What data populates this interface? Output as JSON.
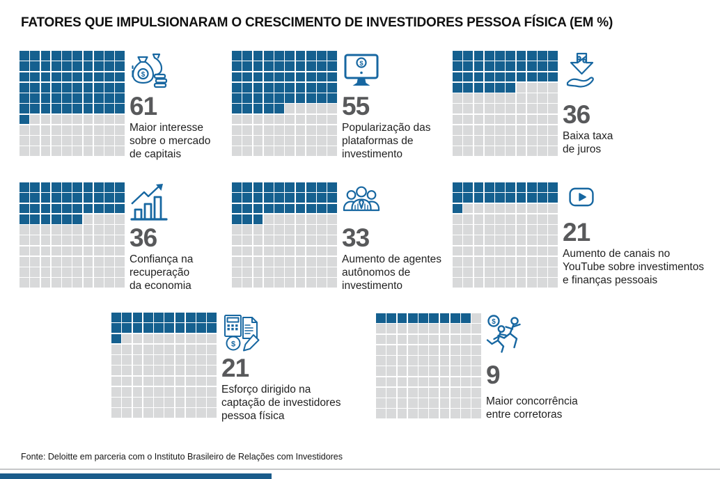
{
  "title": "FATORES QUE IMPULSIONARAM O CRESCIMENTO DE INVESTIDORES PESSOA FÍSICA (EM %)",
  "source_note": "Fonte: Deloitte em parceria com o Instituto Brasileiro de Relações com Investidores",
  "colors": {
    "waffle_filled": "#15608F",
    "waffle_empty": "#D8D9DA",
    "icon_blue": "#1767A1",
    "number_gray": "#58595B",
    "label_dark": "#1F1F1F",
    "rule_gray": "#C6C7C9",
    "bottom_bar_blue": "#1A5C8B"
  },
  "chart_data": {
    "type": "waffle",
    "unit": "%",
    "grid_rows": 10,
    "grid_cols": 10,
    "cells_per_chart": 100,
    "title": "FATORES QUE IMPULSIONARAM O CRESCIMENTO DE INVESTIDORES PESSOA FÍSICA (EM %)",
    "source": "Fonte: Deloitte em parceria com o Instituto Brasileiro de Relações com Investidores",
    "items": [
      {
        "value": 61,
        "label": "Maior interesse sobre o mercado de capitais",
        "label_lines": [
          "Maior interesse",
          "sobre o mercado",
          "de capitais"
        ],
        "icon": "money-bags-icon"
      },
      {
        "value": 55,
        "label": "Popularização das plataformas de investimento",
        "label_lines": [
          "Popularização das",
          "plataformas de",
          "investimento"
        ],
        "icon": "monitor-dollar-icon"
      },
      {
        "value": 36,
        "label": "Baixa taxa de juros",
        "label_lines": [
          "Baixa taxa",
          "de juros"
        ],
        "icon": "percent-down-hand-icon"
      },
      {
        "value": 36,
        "label": "Confiança na recuperação da economia",
        "label_lines": [
          "Confiança na",
          "recuperação",
          "da economia"
        ],
        "icon": "growth-bar-chart-icon"
      },
      {
        "value": 33,
        "label": "Aumento de agentes autônomos de investimento",
        "label_lines": [
          "Aumento de agentes",
          "autônomos de",
          "investimento"
        ],
        "icon": "agents-icon"
      },
      {
        "value": 21,
        "label": "Aumento de canais no YouTube sobre investimentos e finanças pessoais",
        "label_lines": [
          "Aumento de canais no",
          "YouTube sobre investimentos",
          "e finanças pessoais"
        ],
        "icon": "youtube-icon"
      },
      {
        "value": 21,
        "label": "Esforço dirigido na captação de investidores pessoa física",
        "label_lines": [
          "Esforço dirigido na",
          "captação de investidores",
          "pessoa física"
        ],
        "icon": "calculator-doc-icon"
      },
      {
        "value": 9,
        "label": "Maior concorrência entre corretoras",
        "label_lines": [
          "Maior concorrência",
          "entre corretoras"
        ],
        "icon": "running-competitors-icon"
      }
    ]
  }
}
